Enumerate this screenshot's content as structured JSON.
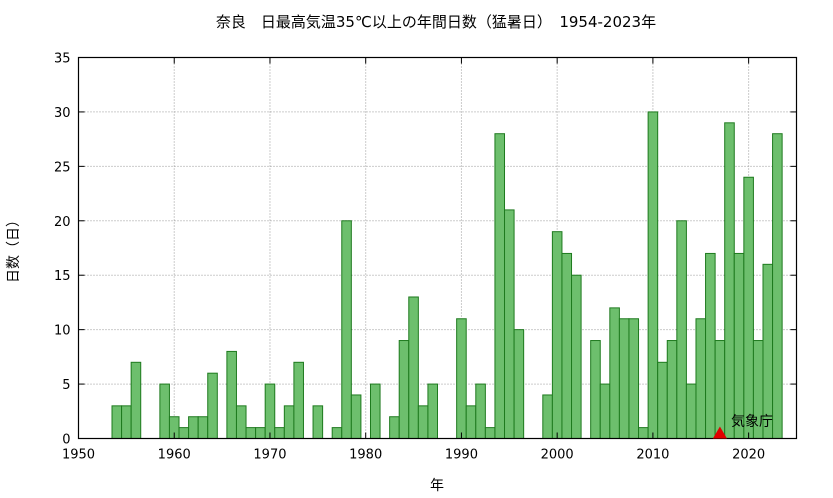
{
  "chart_data": {
    "type": "bar",
    "title": "奈良　日最高気温35℃以上の年間日数（猛暑日）　1954-2023年",
    "xlabel": "年",
    "ylabel": "日数（日）",
    "xlim": [
      1950,
      2025
    ],
    "ylim": [
      0,
      35
    ],
    "xticks": [
      1950,
      1960,
      1970,
      1980,
      1990,
      2000,
      2010,
      2020
    ],
    "yticks": [
      0,
      5,
      10,
      15,
      20,
      25,
      30,
      35
    ],
    "grid": true,
    "bar_color": "#6dbf6d",
    "bar_edge_color": "#1e7a1e",
    "x": [
      1954,
      1955,
      1956,
      1957,
      1958,
      1959,
      1960,
      1961,
      1962,
      1963,
      1964,
      1965,
      1966,
      1967,
      1968,
      1969,
      1970,
      1971,
      1972,
      1973,
      1974,
      1975,
      1976,
      1977,
      1978,
      1979,
      1980,
      1981,
      1982,
      1983,
      1984,
      1985,
      1986,
      1987,
      1988,
      1989,
      1990,
      1991,
      1992,
      1993,
      1994,
      1995,
      1996,
      1997,
      1998,
      1999,
      2000,
      2001,
      2002,
      2003,
      2004,
      2005,
      2006,
      2007,
      2008,
      2009,
      2010,
      2011,
      2012,
      2013,
      2014,
      2015,
      2016,
      2017,
      2018,
      2019,
      2020,
      2021,
      2022,
      2023
    ],
    "values": [
      3,
      3,
      7,
      0,
      0,
      5,
      2,
      1,
      2,
      2,
      6,
      0,
      8,
      3,
      1,
      1,
      5,
      1,
      3,
      7,
      0,
      3,
      0,
      1,
      20,
      4,
      0,
      5,
      0,
      2,
      9,
      13,
      3,
      5,
      0,
      0,
      11,
      3,
      5,
      1,
      28,
      21,
      10,
      0,
      0,
      4,
      19,
      17,
      15,
      0,
      9,
      5,
      12,
      11,
      11,
      1,
      30,
      7,
      9,
      20,
      5,
      11,
      17,
      9,
      29,
      17,
      24,
      9,
      16,
      28
    ],
    "marker": {
      "x": 2017,
      "y": 0,
      "shape": "triangle",
      "color": "#e00000"
    },
    "credit": "気象庁"
  }
}
